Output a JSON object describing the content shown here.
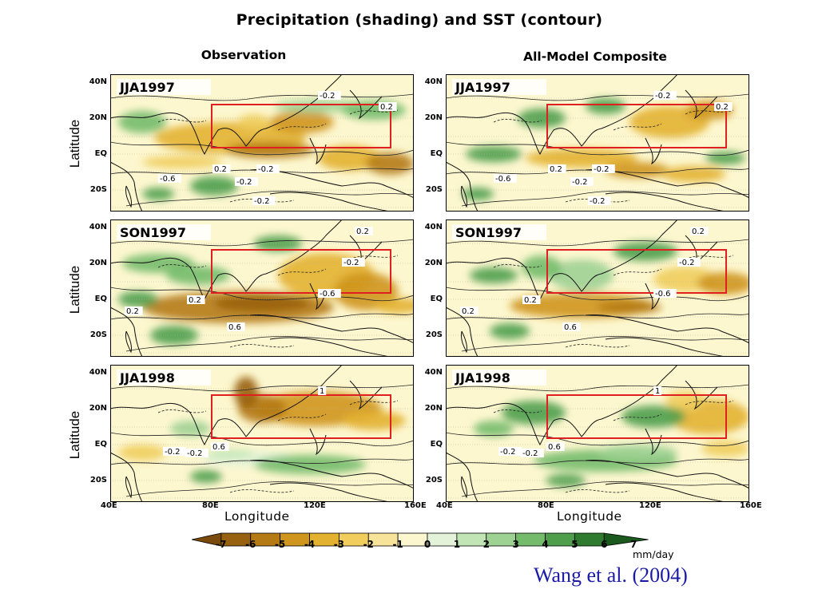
{
  "title": "Precipitation (shading) and SST (contour)",
  "columns": [
    "Observation",
    "All-Model Composite"
  ],
  "y_axis_label": "Latitude",
  "x_axis_label": "Longitude",
  "lat_ticks": [
    "40N",
    "20N",
    "EQ",
    "20S"
  ],
  "lon_ticks": [
    "40E",
    "80E",
    "120E",
    "160E"
  ],
  "panels": [
    {
      "column": 0,
      "row": 0,
      "label": "JJA1997",
      "contour_labels": [
        "-0.2",
        "0.2",
        "0.2",
        "-0.2",
        "-0.6",
        "-0.2",
        "-0.2"
      ]
    },
    {
      "column": 1,
      "row": 0,
      "label": "JJA1997",
      "contour_labels": [
        "-0.2",
        "0.2",
        "0.2",
        "-0.2",
        "-0.6",
        "-0.2",
        "-0.2"
      ]
    },
    {
      "column": 0,
      "row": 1,
      "label": "SON1997",
      "contour_labels": [
        "0.2",
        "-0.2",
        "0.2",
        "-0.6",
        "0.2",
        "0.6"
      ]
    },
    {
      "column": 1,
      "row": 1,
      "label": "SON1997",
      "contour_labels": [
        "0.2",
        "-0.2",
        "0.2",
        "-0.6",
        "0.2",
        "0.6"
      ]
    },
    {
      "column": 0,
      "row": 2,
      "label": "JJA1998",
      "contour_labels": [
        "1",
        "0.6",
        "-0.2",
        "-0.2"
      ]
    },
    {
      "column": 1,
      "row": 2,
      "label": "JJA1998",
      "contour_labels": [
        "1",
        "0.6",
        "-0.2",
        "-0.2"
      ]
    }
  ],
  "colorbar": {
    "labels": [
      "-7",
      "-6",
      "-5",
      "-4",
      "-3",
      "-2",
      "-1",
      "0",
      "1",
      "2",
      "3",
      "4",
      "5",
      "6",
      "7"
    ],
    "colors": [
      "#7a4a0c",
      "#98610f",
      "#b57a14",
      "#cf951d",
      "#e3b130",
      "#f0cd5c",
      "#f8e39a",
      "#fdf7cf",
      "#e3f3da",
      "#c2e5b5",
      "#9ed293",
      "#74bb6c",
      "#4e9e4c",
      "#2f7c31",
      "#1b5a1e"
    ],
    "units": "mm/day"
  },
  "citation": "Wang et al. (2004)",
  "box_color": "#e02020"
}
